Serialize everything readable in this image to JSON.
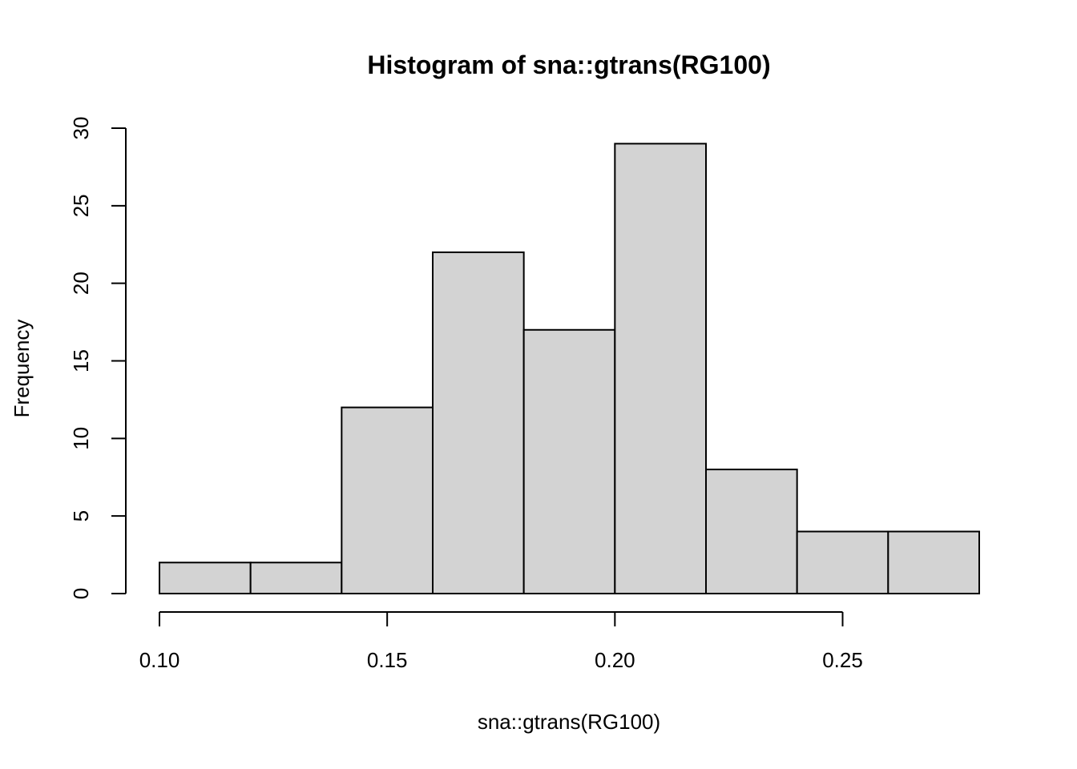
{
  "chart_data": {
    "type": "bar",
    "title": "Histogram of sna::gtrans(RG100)",
    "xlabel": "sna::gtrans(RG100)",
    "ylabel": "Frequency",
    "bins": [
      {
        "start": 0.1,
        "end": 0.12,
        "count": 2
      },
      {
        "start": 0.12,
        "end": 0.14,
        "count": 2
      },
      {
        "start": 0.14,
        "end": 0.16,
        "count": 12
      },
      {
        "start": 0.16,
        "end": 0.18,
        "count": 22
      },
      {
        "start": 0.18,
        "end": 0.2,
        "count": 17
      },
      {
        "start": 0.2,
        "end": 0.22,
        "count": 29
      },
      {
        "start": 0.22,
        "end": 0.24,
        "count": 8
      },
      {
        "start": 0.24,
        "end": 0.26,
        "count": 4
      },
      {
        "start": 0.26,
        "end": 0.28,
        "count": 4
      }
    ],
    "xlim": [
      0.1,
      0.28
    ],
    "ylim": [
      0,
      30
    ],
    "x_ticks": [
      "0.10",
      "0.15",
      "0.20",
      "0.25"
    ],
    "y_ticks": [
      "0",
      "5",
      "10",
      "15",
      "20",
      "25",
      "30"
    ],
    "bar_color": "#d3d3d3",
    "border_color": "#000000",
    "grid": false,
    "legend": "none"
  }
}
